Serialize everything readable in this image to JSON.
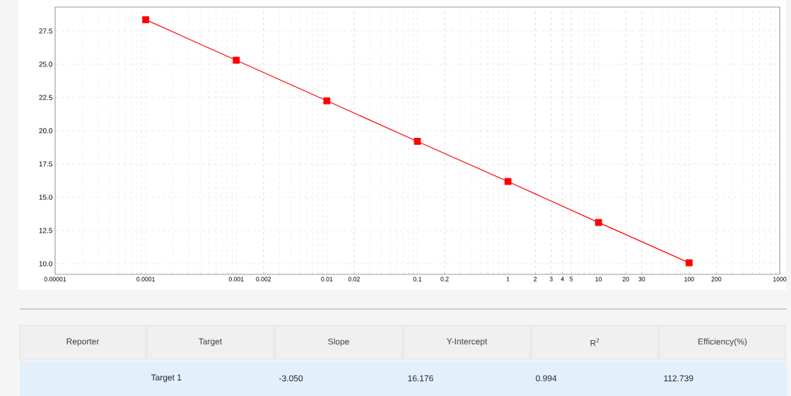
{
  "chart_data": {
    "type": "line",
    "x": [
      0.0001,
      0.001,
      0.01,
      0.1,
      1,
      10,
      100
    ],
    "series": [
      {
        "color": "#ff0000",
        "values": [
          28.35,
          25.3,
          22.25,
          19.2,
          16.18,
          13.1,
          10.07
        ]
      }
    ],
    "log": "x",
    "xlim": [
      1e-05,
      1000
    ],
    "ylim": [
      9.2,
      29.3
    ],
    "xticks": [
      {
        "value": 1e-05,
        "label": "0.00001"
      },
      {
        "value": 0.0001,
        "label": "0.0001"
      },
      {
        "value": 0.001,
        "label": "0.001"
      },
      {
        "value": 0.002,
        "label": "0.002"
      },
      {
        "value": 0.01,
        "label": "0.01"
      },
      {
        "value": 0.02,
        "label": "0.02"
      },
      {
        "value": 0.1,
        "label": "0.1"
      },
      {
        "value": 0.2,
        "label": "0.2"
      },
      1,
      2,
      3,
      4,
      5,
      10,
      20,
      30,
      100,
      200,
      1000
    ],
    "yticks": [
      {
        "value": 10,
        "label": "10.0"
      },
      12.5,
      {
        "value": 15,
        "label": "15.0"
      },
      17.5,
      {
        "value": 20,
        "label": "20.0"
      },
      22.5,
      {
        "value": 25,
        "label": "25.0"
      },
      27.5
    ],
    "grid": true,
    "marker": "square",
    "line_style": "solid",
    "annotations": [
      "Reporter",
      "Target",
      "Slope",
      "Y-Intercept",
      "R$^{2}$",
      "Efficiency(%)",
      "Target 1",
      "-3.050",
      "16.176",
      "0.994",
      "112.739"
    ]
  }
}
